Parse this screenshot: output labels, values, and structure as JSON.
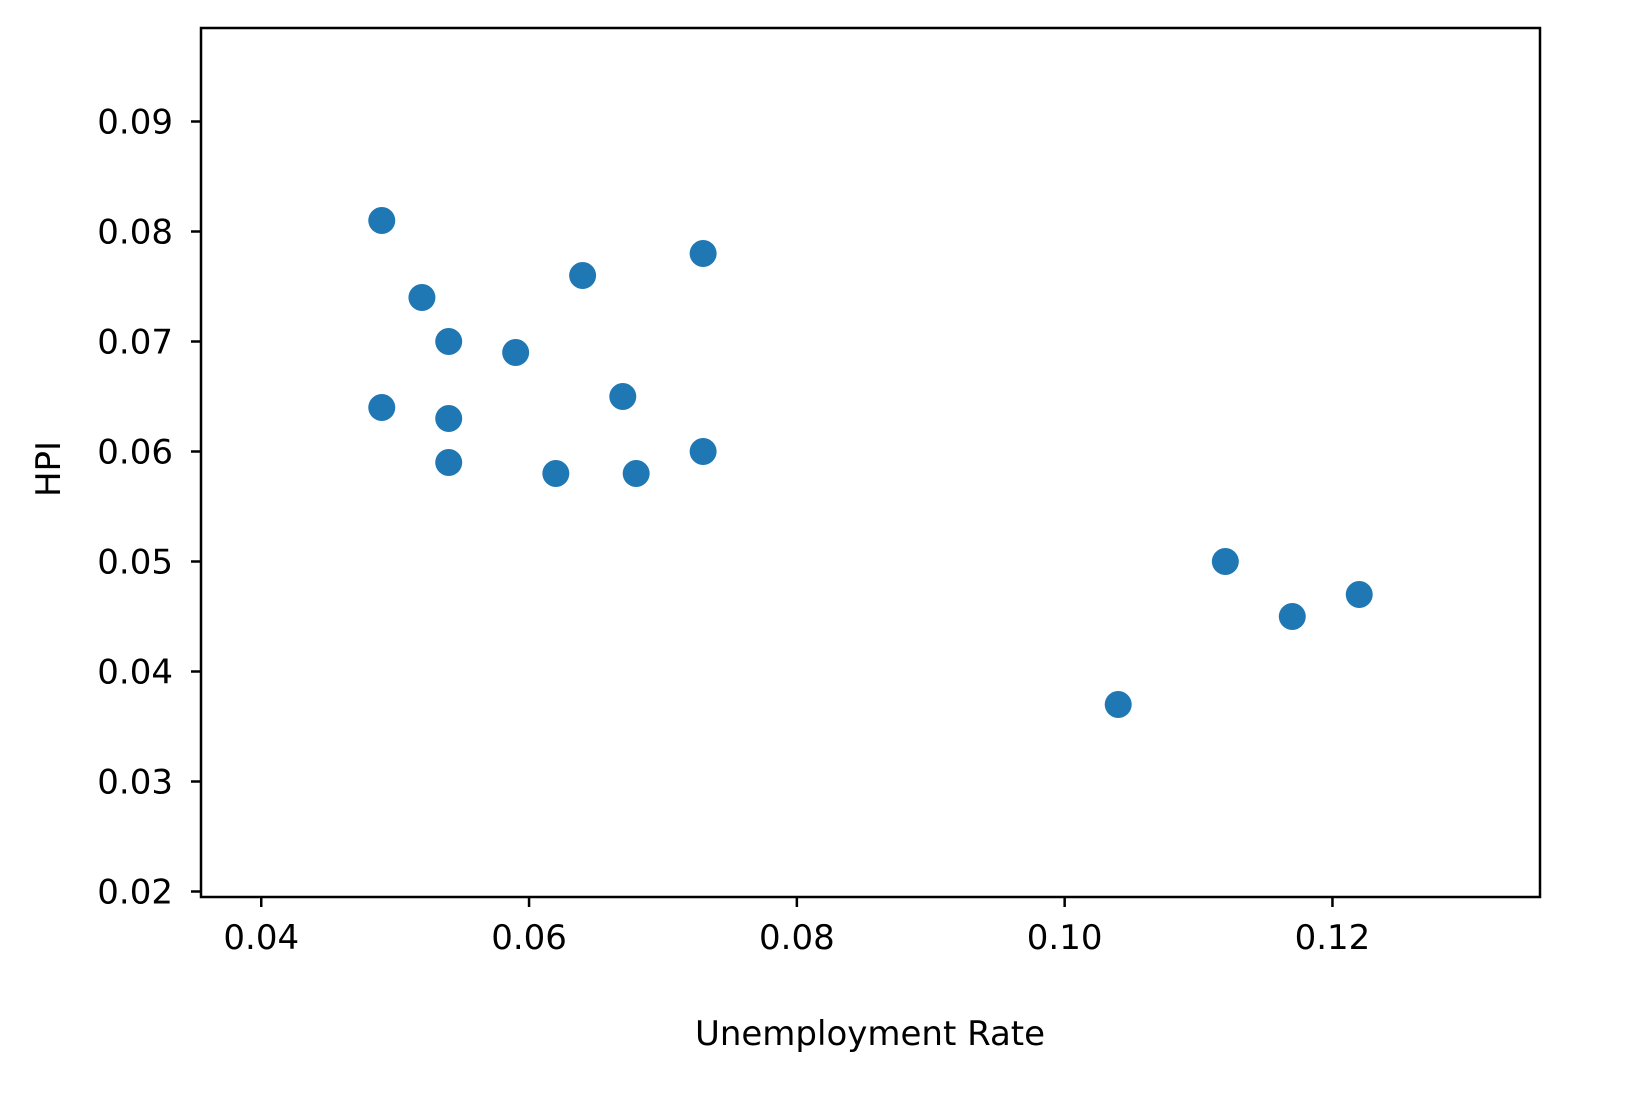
{
  "chart_data": {
    "type": "scatter",
    "title": "",
    "xlabel": "Unemployment Rate",
    "ylabel": "HPI",
    "xlim": [
      0.0355,
      0.1355
    ],
    "ylim": [
      0.0195,
      0.0985
    ],
    "xticks": [
      0.04,
      0.06,
      0.08,
      0.1,
      0.12
    ],
    "xtick_labels": [
      "0.04",
      "0.06",
      "0.08",
      "0.10",
      "0.12"
    ],
    "yticks": [
      0.02,
      0.03,
      0.04,
      0.05,
      0.06,
      0.07,
      0.08,
      0.09
    ],
    "ytick_labels": [
      "0.02",
      "0.03",
      "0.04",
      "0.05",
      "0.06",
      "0.07",
      "0.08",
      "0.09"
    ],
    "grid": false,
    "legend": "none",
    "marker_color": "#1f77b4",
    "series": [
      {
        "points": [
          {
            "x": 0.049,
            "y": 0.081
          },
          {
            "x": 0.052,
            "y": 0.074
          },
          {
            "x": 0.054,
            "y": 0.07
          },
          {
            "x": 0.059,
            "y": 0.069
          },
          {
            "x": 0.064,
            "y": 0.076
          },
          {
            "x": 0.073,
            "y": 0.078
          },
          {
            "x": 0.049,
            "y": 0.064
          },
          {
            "x": 0.054,
            "y": 0.063
          },
          {
            "x": 0.054,
            "y": 0.059
          },
          {
            "x": 0.062,
            "y": 0.058
          },
          {
            "x": 0.068,
            "y": 0.058
          },
          {
            "x": 0.067,
            "y": 0.065
          },
          {
            "x": 0.073,
            "y": 0.06
          },
          {
            "x": 0.112,
            "y": 0.05
          },
          {
            "x": 0.117,
            "y": 0.045
          },
          {
            "x": 0.122,
            "y": 0.047
          },
          {
            "x": 0.104,
            "y": 0.037
          }
        ]
      }
    ]
  }
}
